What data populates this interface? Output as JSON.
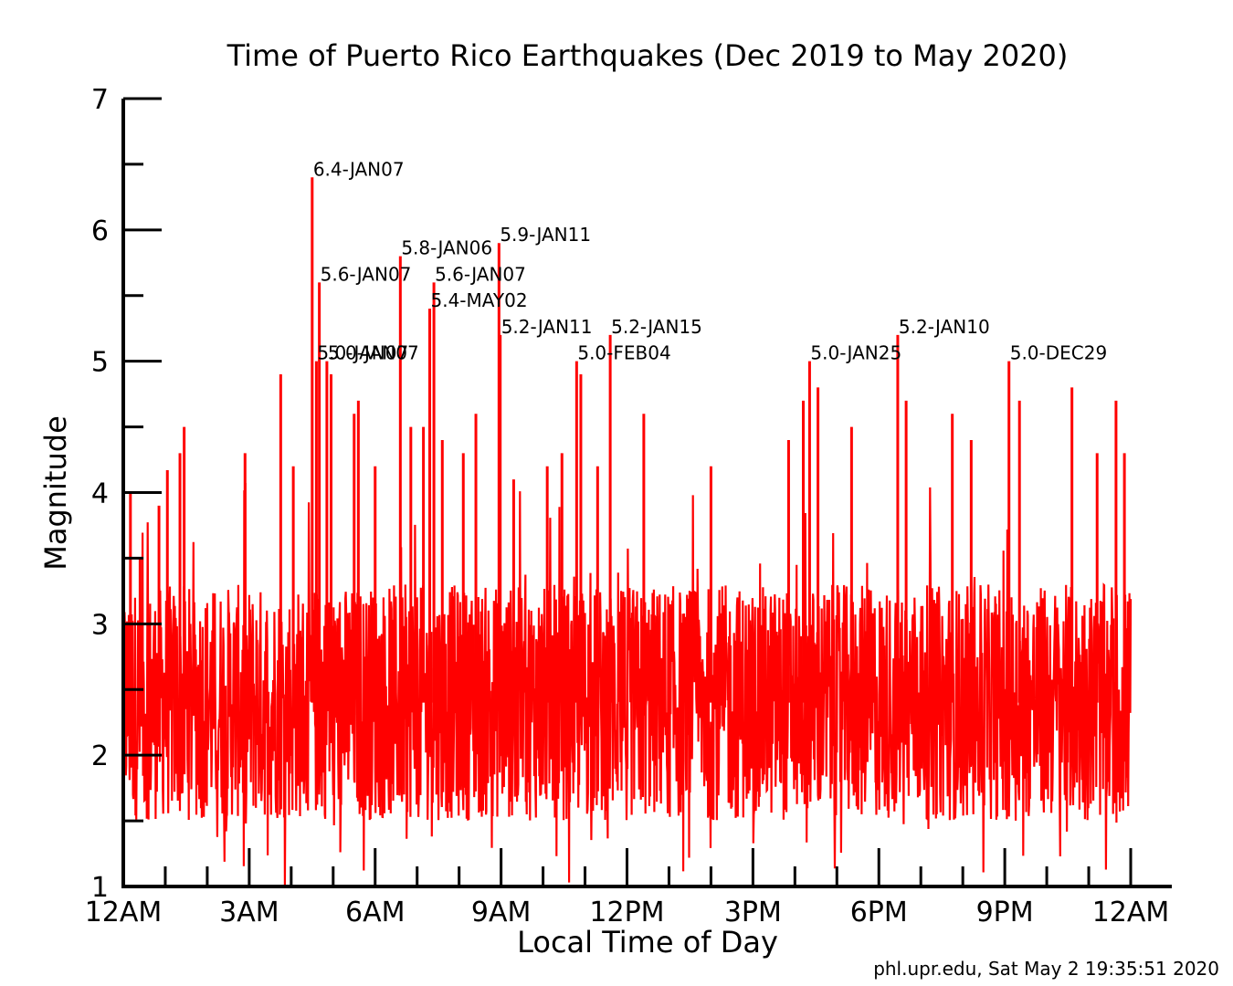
{
  "chart_data": {
    "type": "line",
    "title": "Time of Puerto Rico Earthquakes (Dec 2019 to May 2020)",
    "xlabel": "Local Time of Day",
    "ylabel": "Magnitude",
    "xlim": [
      0,
      24
    ],
    "ylim": [
      1,
      7
    ],
    "x_ticks": [
      {
        "value": 0,
        "label": "12AM"
      },
      {
        "value": 3,
        "label": "3AM"
      },
      {
        "value": 6,
        "label": "6AM"
      },
      {
        "value": 9,
        "label": "9AM"
      },
      {
        "value": 12,
        "label": "12PM"
      },
      {
        "value": 15,
        "label": "3PM"
      },
      {
        "value": 18,
        "label": "6PM"
      },
      {
        "value": 21,
        "label": "9PM"
      },
      {
        "value": 24,
        "label": "12AM"
      }
    ],
    "y_ticks": [
      {
        "value": 1,
        "label": "1"
      },
      {
        "value": 2,
        "label": "2"
      },
      {
        "value": 3,
        "label": "3"
      },
      {
        "value": 4,
        "label": "4"
      },
      {
        "value": 5,
        "label": "5"
      },
      {
        "value": 6,
        "label": "6"
      },
      {
        "value": 7,
        "label": "7"
      }
    ],
    "grid": false,
    "series_color": "#ff0000",
    "annotated_events": [
      {
        "x": 4.5,
        "y": 6.4,
        "label": "6.4-JAN07"
      },
      {
        "x": 4.67,
        "y": 5.6,
        "label": "5.6-JAN07"
      },
      {
        "x": 4.6,
        "y": 5.0,
        "label": "5.0-JAN07"
      },
      {
        "x": 4.85,
        "y": 5.0,
        "label": "5.0-JAN07"
      },
      {
        "x": 6.6,
        "y": 5.8,
        "label": "5.8-JAN06"
      },
      {
        "x": 7.4,
        "y": 5.6,
        "label": "5.6-JAN07"
      },
      {
        "x": 7.3,
        "y": 5.4,
        "label": "5.4-MAY02"
      },
      {
        "x": 8.95,
        "y": 5.9,
        "label": "5.9-JAN11"
      },
      {
        "x": 8.98,
        "y": 5.2,
        "label": "5.2-JAN11"
      },
      {
        "x": 11.6,
        "y": 5.2,
        "label": "5.2-JAN15"
      },
      {
        "x": 10.8,
        "y": 5.0,
        "label": "5.0-FEB04"
      },
      {
        "x": 16.35,
        "y": 5.0,
        "label": "5.0-JAN25"
      },
      {
        "x": 18.45,
        "y": 5.2,
        "label": "5.2-JAN10"
      },
      {
        "x": 21.1,
        "y": 5.0,
        "label": "5.0-DEC29"
      }
    ],
    "other_peaks": [
      {
        "x": 0.17,
        "y": 4.0
      },
      {
        "x": 0.4,
        "y": 3.5
      },
      {
        "x": 0.85,
        "y": 3.9
      },
      {
        "x": 1.05,
        "y": 4.17
      },
      {
        "x": 1.35,
        "y": 4.3
      },
      {
        "x": 1.45,
        "y": 4.5
      },
      {
        "x": 2.9,
        "y": 4.3
      },
      {
        "x": 3.75,
        "y": 4.9
      },
      {
        "x": 4.05,
        "y": 4.2
      },
      {
        "x": 4.95,
        "y": 4.9
      },
      {
        "x": 5.5,
        "y": 4.6
      },
      {
        "x": 5.6,
        "y": 4.7
      },
      {
        "x": 6.0,
        "y": 4.2
      },
      {
        "x": 6.85,
        "y": 4.5
      },
      {
        "x": 7.15,
        "y": 4.5
      },
      {
        "x": 7.6,
        "y": 4.4
      },
      {
        "x": 8.1,
        "y": 4.3
      },
      {
        "x": 8.4,
        "y": 4.6
      },
      {
        "x": 9.3,
        "y": 4.1
      },
      {
        "x": 10.1,
        "y": 4.2
      },
      {
        "x": 10.45,
        "y": 4.3
      },
      {
        "x": 10.9,
        "y": 4.9
      },
      {
        "x": 11.3,
        "y": 4.2
      },
      {
        "x": 12.4,
        "y": 4.6
      },
      {
        "x": 14.0,
        "y": 4.2
      },
      {
        "x": 15.85,
        "y": 4.4
      },
      {
        "x": 16.2,
        "y": 4.7
      },
      {
        "x": 16.55,
        "y": 4.8
      },
      {
        "x": 17.35,
        "y": 4.5
      },
      {
        "x": 18.65,
        "y": 4.7
      },
      {
        "x": 19.75,
        "y": 4.6
      },
      {
        "x": 20.2,
        "y": 4.4
      },
      {
        "x": 21.35,
        "y": 4.7
      },
      {
        "x": 22.6,
        "y": 4.8
      },
      {
        "x": 23.2,
        "y": 4.3
      },
      {
        "x": 23.65,
        "y": 4.7
      },
      {
        "x": 23.85,
        "y": 4.3
      }
    ],
    "baseline_range": [
      1.5,
      3.3
    ]
  },
  "footer": {
    "credit": "phl.upr.edu, Sat May  2 19:35:51 2020"
  }
}
